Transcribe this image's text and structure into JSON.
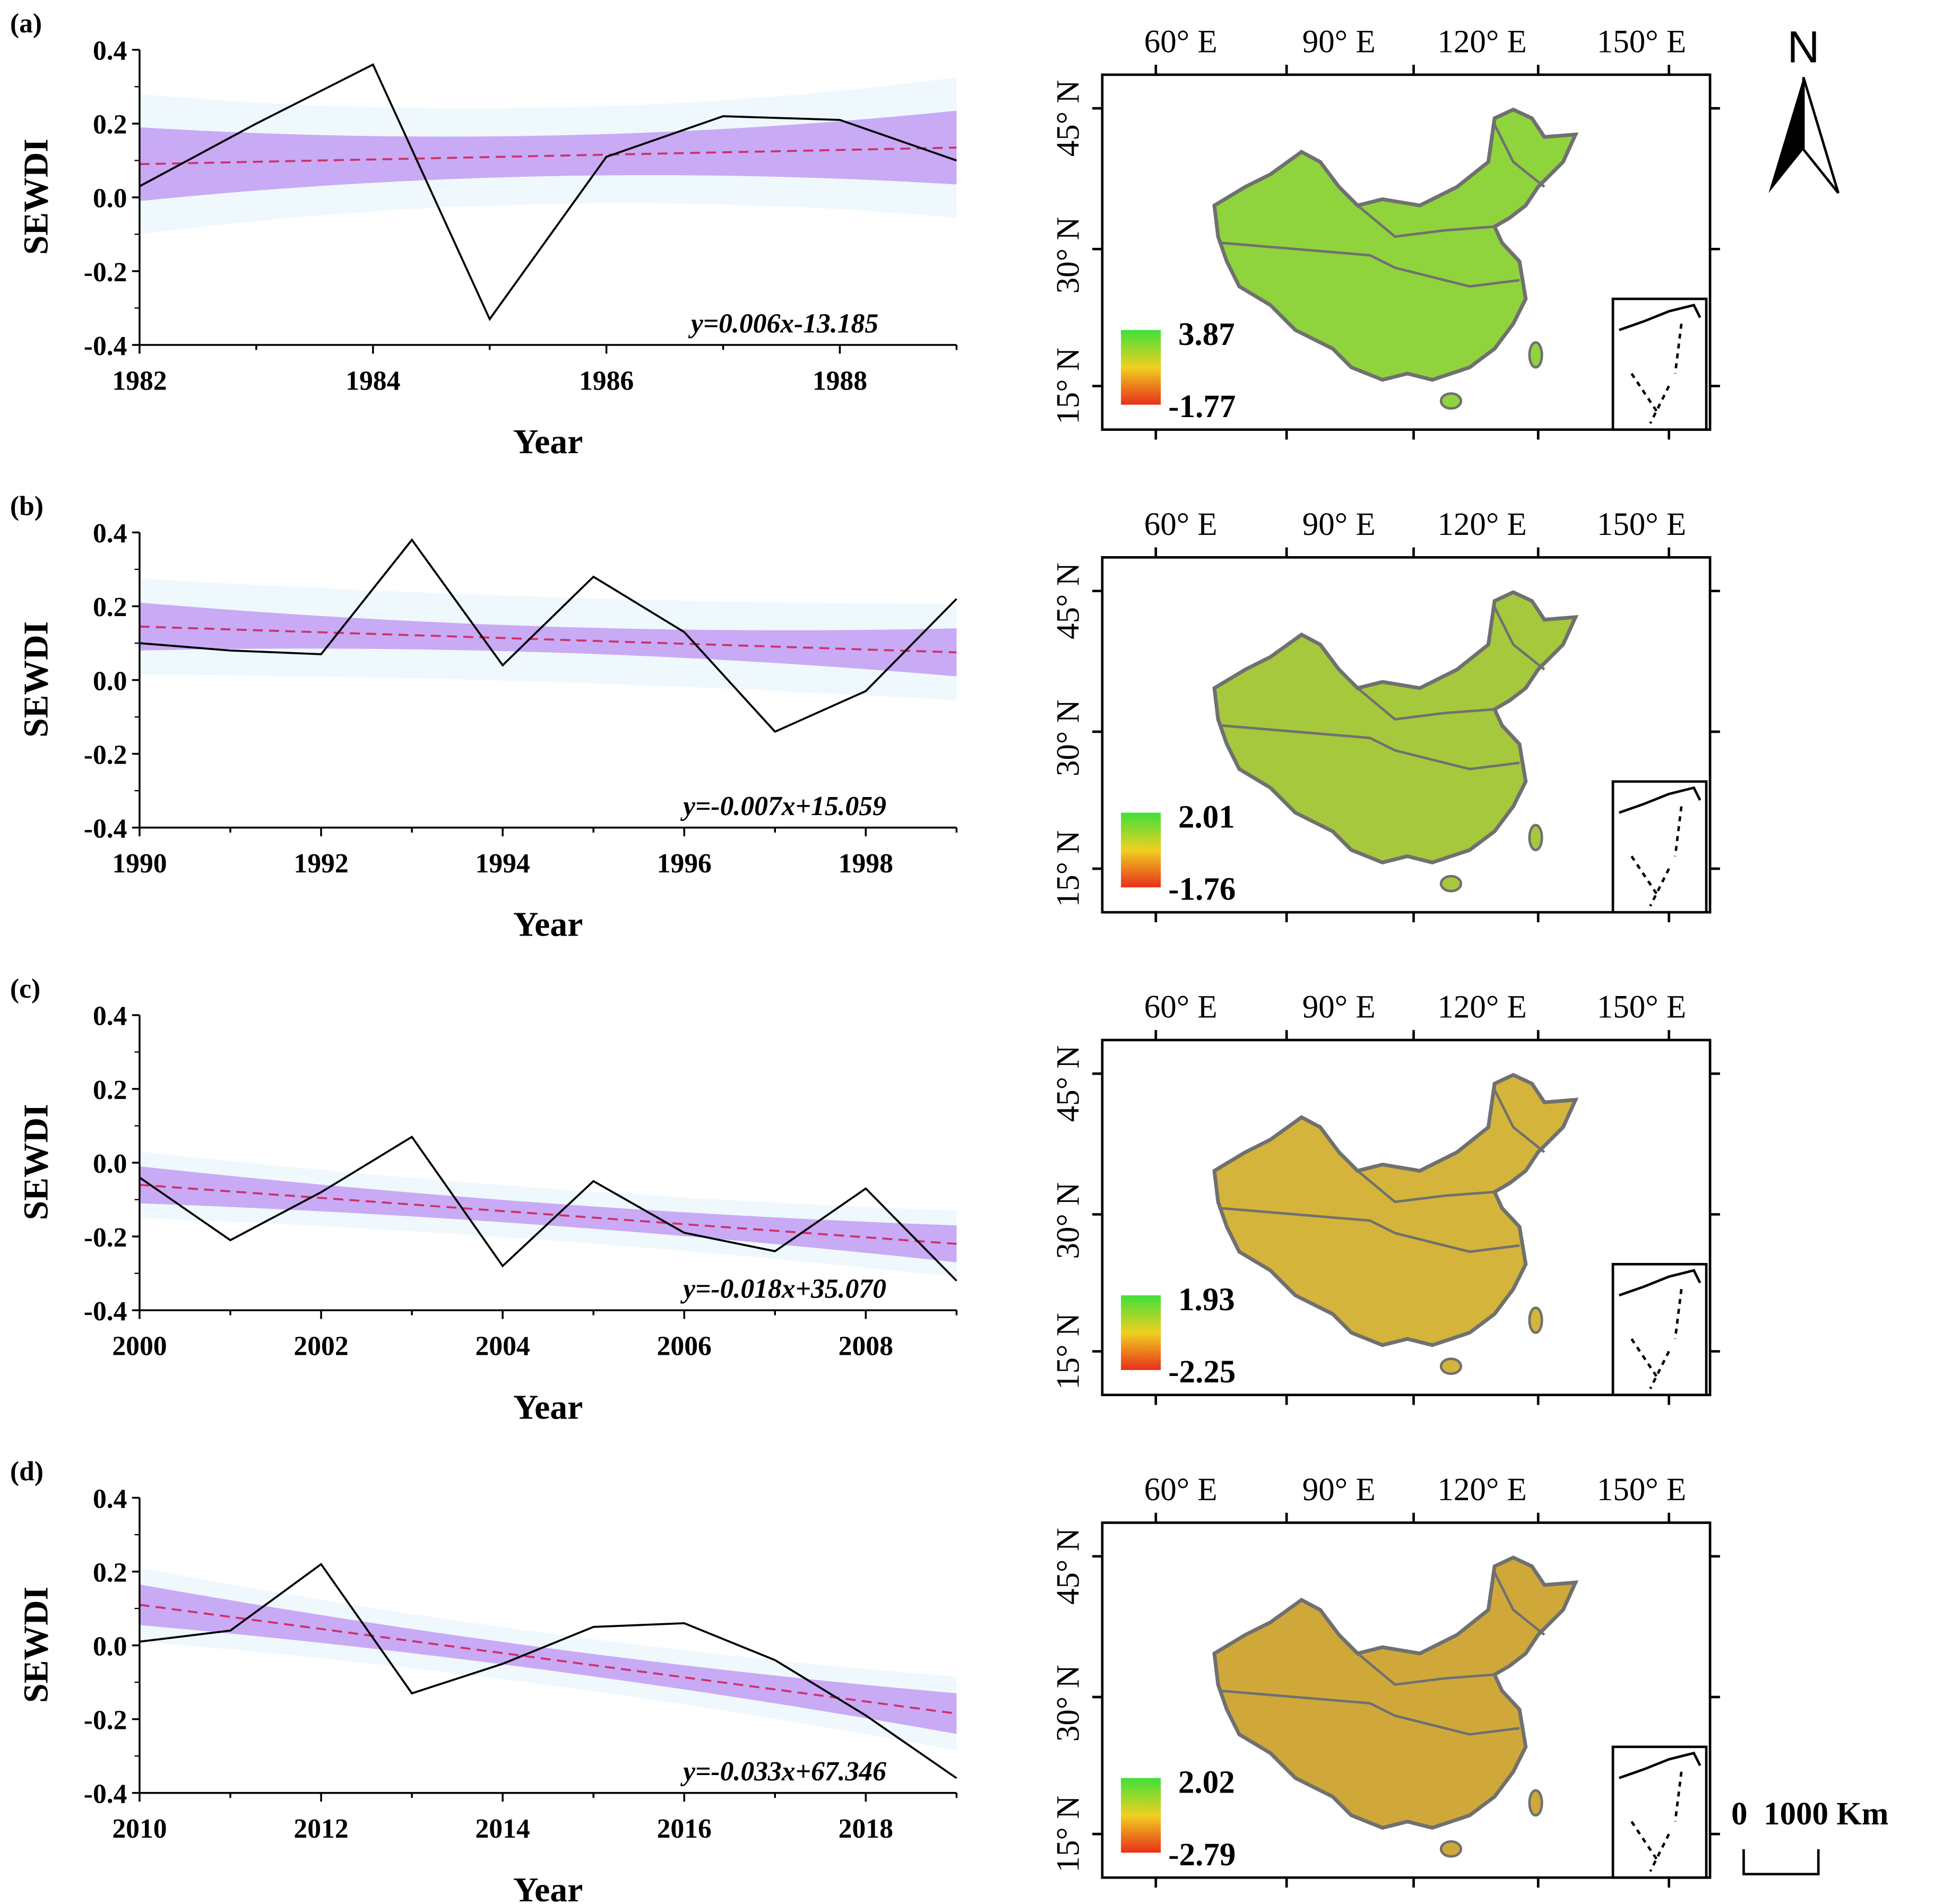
{
  "chart_data": [
    {
      "type": "line",
      "panel_label": "(a)",
      "xlabel": "Year",
      "ylabel": "SEWDI",
      "x": [
        1982,
        1983,
        1984,
        1985,
        1986,
        1987,
        1988,
        1989
      ],
      "values": [
        0.03,
        0.2,
        0.36,
        -0.33,
        0.11,
        0.22,
        0.21,
        0.1
      ],
      "xticks": [
        "1982",
        "1984",
        "1986",
        "1988"
      ],
      "yticks": [
        "0.4",
        "0.2",
        "0.0",
        "-0.2",
        "-0.4"
      ],
      "ylim": [
        -0.4,
        0.4
      ],
      "trend": {
        "equation": "y=0.006x-13.185",
        "start": 0.09,
        "end": 0.135
      },
      "ci95_halfwidth": {
        "center": 0.055,
        "edge": 0.1
      },
      "pi95_halfwidth": {
        "center": 0.13,
        "edge": 0.19
      },
      "map": {
        "legend_max": "3.87",
        "legend_min": "-1.77",
        "tone": "#8fd43c"
      }
    },
    {
      "type": "line",
      "panel_label": "(b)",
      "xlabel": "Year",
      "ylabel": "SEWDI",
      "x": [
        1990,
        1991,
        1992,
        1993,
        1994,
        1995,
        1996,
        1997,
        1998,
        1999
      ],
      "values": [
        0.1,
        0.08,
        0.07,
        0.38,
        0.04,
        0.28,
        0.13,
        -0.14,
        -0.03,
        0.22
      ],
      "xticks": [
        "1990",
        "1992",
        "1994",
        "1996",
        "1998"
      ],
      "yticks": [
        "0.4",
        "0.2",
        "0.0",
        "-0.2",
        "-0.4"
      ],
      "ylim": [
        -0.4,
        0.4
      ],
      "trend": {
        "equation": "y=-0.007x+15.059",
        "start": 0.145,
        "end": 0.075
      },
      "ci95_halfwidth": {
        "center": 0.035,
        "edge": 0.065
      },
      "pi95_halfwidth": {
        "center": 0.115,
        "edge": 0.13
      },
      "map": {
        "legend_max": "2.01",
        "legend_min": "-1.76",
        "tone": "#a6c83c"
      }
    },
    {
      "type": "line",
      "panel_label": "(c)",
      "xlabel": "Year",
      "ylabel": "SEWDI",
      "x": [
        2000,
        2001,
        2002,
        2003,
        2004,
        2005,
        2006,
        2007,
        2008,
        2009
      ],
      "values": [
        -0.04,
        -0.21,
        -0.08,
        0.07,
        -0.28,
        -0.05,
        -0.19,
        -0.24,
        -0.07,
        -0.32
      ],
      "xticks": [
        "2000",
        "2002",
        "2004",
        "2006",
        "2008"
      ],
      "yticks": [
        "0.4",
        "0.2",
        "0.0",
        "-0.2",
        "-0.4"
      ],
      "ylim": [
        -0.4,
        0.4
      ],
      "trend": {
        "equation": "y=-0.018x+35.070",
        "start": -0.06,
        "end": -0.22
      },
      "ci95_halfwidth": {
        "center": 0.03,
        "edge": 0.05
      },
      "pi95_halfwidth": {
        "center": 0.07,
        "edge": 0.09
      },
      "map": {
        "legend_max": "1.93",
        "legend_min": "-2.25",
        "tone": "#d4b43a"
      }
    },
    {
      "type": "line",
      "panel_label": "(d)",
      "xlabel": "Year",
      "ylabel": "SEWDI",
      "x": [
        2010,
        2011,
        2012,
        2013,
        2014,
        2015,
        2016,
        2017,
        2018,
        2019
      ],
      "values": [
        0.01,
        0.04,
        0.22,
        -0.13,
        -0.05,
        0.05,
        0.06,
        -0.04,
        -0.19,
        -0.36
      ],
      "xticks": [
        "2010",
        "2012",
        "2014",
        "2016",
        "2018"
      ],
      "yticks": [
        "0.4",
        "0.2",
        "0.0",
        "-0.2",
        "-0.4"
      ],
      "ylim": [
        -0.4,
        0.4
      ],
      "trend": {
        "equation": "y=-0.033x+67.346",
        "start": 0.11,
        "end": -0.185
      },
      "ci95_halfwidth": {
        "center": 0.03,
        "edge": 0.055
      },
      "pi95_halfwidth": {
        "center": 0.07,
        "edge": 0.1
      },
      "map": {
        "legend_max": "2.02",
        "legend_min": "-2.79",
        "tone": "#d0a83a"
      }
    }
  ],
  "map_axes": {
    "lon_labels": [
      "60° E",
      "90° E",
      "120° E",
      "150° E"
    ],
    "lat_labels": [
      "45° N",
      "30° N",
      "15° N"
    ]
  },
  "north_arrow": "N",
  "scale_bar": "0  1000 Km",
  "colors": {
    "line": "#000000",
    "trend": "#d0306a",
    "ci": "#c9aaf5",
    "pi": "#eef8fd",
    "boundary": "#707070",
    "legend_top": "#3fe03a",
    "legend_mid": "#f0d020",
    "legend_bottom": "#e8301a"
  }
}
